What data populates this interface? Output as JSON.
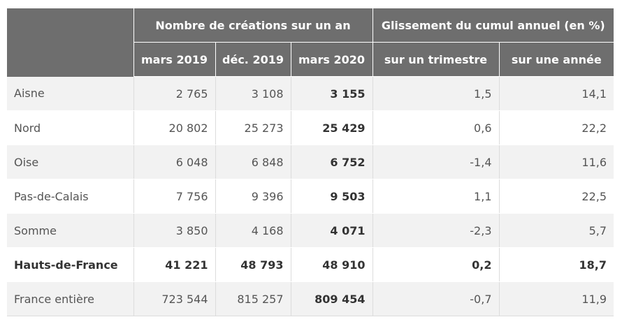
{
  "header": {
    "group1": "Nombre de créations sur un an",
    "group2": "Glissement du cumul annuel (en %)",
    "columns": [
      "mars 2019",
      "déc. 2019",
      "mars 2020",
      "sur un trimestre",
      "sur une année"
    ]
  },
  "rows": [
    {
      "name": "Aisne",
      "mar2019": "2 765",
      "dec2019": "3 108",
      "mar2020": "3 155",
      "trimestre": "1,5",
      "annee": "14,1"
    },
    {
      "name": "Nord",
      "mar2019": "20 802",
      "dec2019": "25 273",
      "mar2020": "25 429",
      "trimestre": "0,6",
      "annee": "22,2"
    },
    {
      "name": "Oise",
      "mar2019": "6 048",
      "dec2019": "6 848",
      "mar2020": "6 752",
      "trimestre": "-1,4",
      "annee": "11,6"
    },
    {
      "name": "Pas-de-Calais",
      "mar2019": "7 756",
      "dec2019": "9 396",
      "mar2020": "9 503",
      "trimestre": "1,1",
      "annee": "22,5"
    },
    {
      "name": "Somme",
      "mar2019": "3 850",
      "dec2019": "4 168",
      "mar2020": "4 071",
      "trimestre": "-2,3",
      "annee": "5,7"
    },
    {
      "name": "Hauts-de-France",
      "mar2019": "41 221",
      "dec2019": "48 793",
      "mar2020": "48 910",
      "trimestre": "0,2",
      "annee": "18,7"
    },
    {
      "name": "France entière",
      "mar2019": "723 544",
      "dec2019": "815 257",
      "mar2020": "809 454",
      "trimestre": "-0,7",
      "annee": "11,9"
    }
  ]
}
